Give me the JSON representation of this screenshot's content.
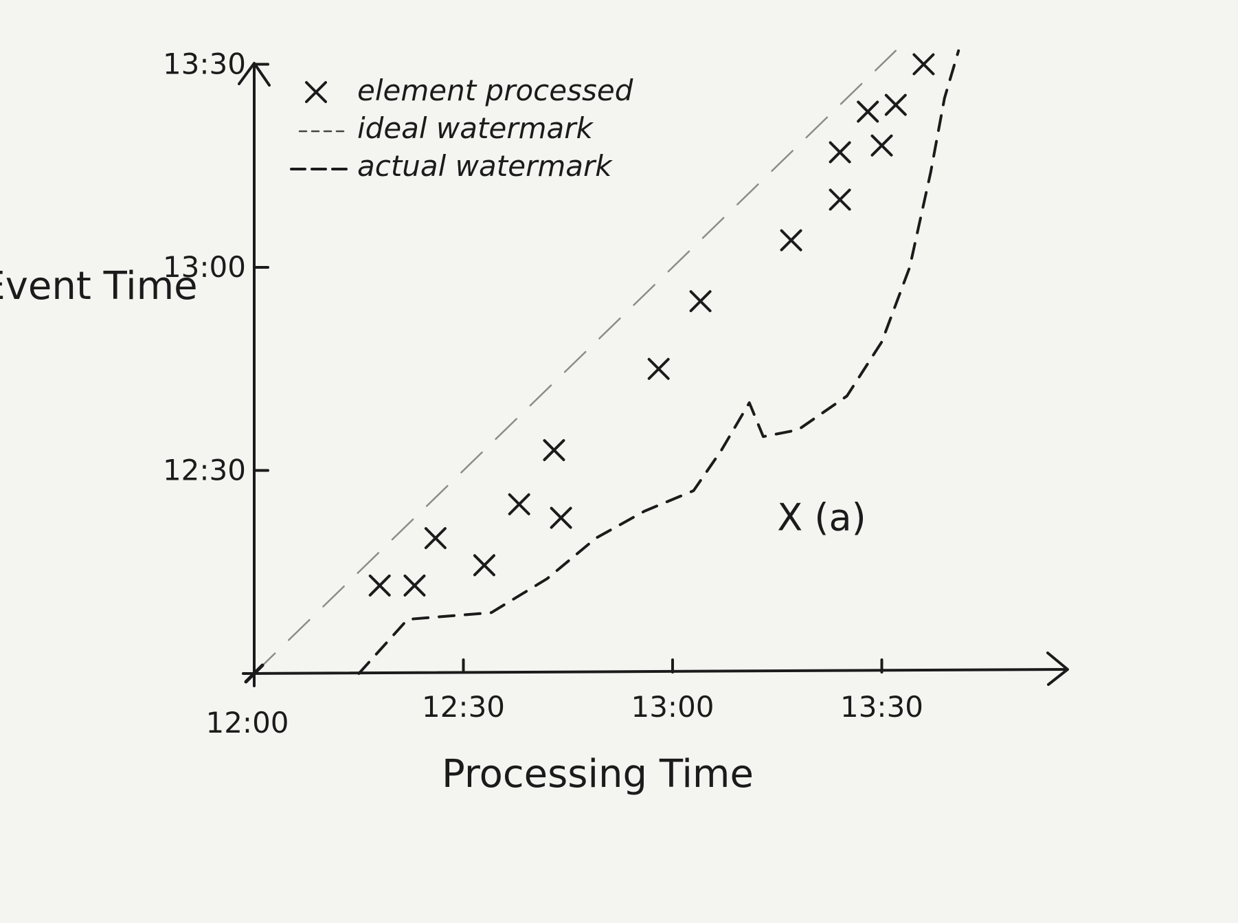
{
  "chart_data": {
    "type": "scatter",
    "x_axis": {
      "label": "Processing Time",
      "ticks": [
        "12:00",
        "12:30",
        "13:00",
        "13:30"
      ],
      "range": [
        0,
        125
      ]
    },
    "y_axis": {
      "label": "Event Time",
      "ticks": [
        "12:00",
        "12:30",
        "13:00",
        "13:30"
      ],
      "range": [
        0,
        92
      ]
    },
    "legend": {
      "placement": "top-left",
      "items": [
        {
          "marker": "x",
          "label": "element processed"
        },
        {
          "marker": "thin-dash",
          "label": "ideal watermark"
        },
        {
          "marker": "thick-dash",
          "label": "actual watermark"
        }
      ]
    },
    "elements_processed": [
      {
        "x": 18,
        "y": 13
      },
      {
        "x": 23,
        "y": 13
      },
      {
        "x": 26,
        "y": 20
      },
      {
        "x": 33,
        "y": 16
      },
      {
        "x": 38,
        "y": 25
      },
      {
        "x": 44,
        "y": 23
      },
      {
        "x": 43,
        "y": 33
      },
      {
        "x": 58,
        "y": 45
      },
      {
        "x": 64,
        "y": 55
      },
      {
        "x": 77,
        "y": 64
      },
      {
        "x": 84,
        "y": 70
      },
      {
        "x": 84,
        "y": 77
      },
      {
        "x": 90,
        "y": 78
      },
      {
        "x": 88,
        "y": 83
      },
      {
        "x": 92,
        "y": 84
      },
      {
        "x": 96,
        "y": 90
      }
    ],
    "ideal_watermark": {
      "points": [
        {
          "x": 0,
          "y": 0
        },
        {
          "x": 92,
          "y": 92
        }
      ]
    },
    "actual_watermark": {
      "points": [
        {
          "x": 15,
          "y": 0
        },
        {
          "x": 22,
          "y": 8
        },
        {
          "x": 34,
          "y": 9
        },
        {
          "x": 42,
          "y": 14
        },
        {
          "x": 49,
          "y": 20
        },
        {
          "x": 56,
          "y": 24
        },
        {
          "x": 63,
          "y": 27
        },
        {
          "x": 67,
          "y": 33
        },
        {
          "x": 71,
          "y": 40
        },
        {
          "x": 73,
          "y": 35
        },
        {
          "x": 78,
          "y": 36
        },
        {
          "x": 85,
          "y": 41
        },
        {
          "x": 90,
          "y": 49
        },
        {
          "x": 94,
          "y": 60
        },
        {
          "x": 97,
          "y": 74
        },
        {
          "x": 99,
          "y": 85
        },
        {
          "x": 101,
          "y": 92
        }
      ]
    },
    "annotations": [
      {
        "text": "X (a)",
        "x": 75,
        "y": 23
      }
    ],
    "grid": false,
    "colors": {
      "ink": "#1b1b1b",
      "ideal_line": "#8b8b8b",
      "paper": "#f4f4f1"
    }
  }
}
